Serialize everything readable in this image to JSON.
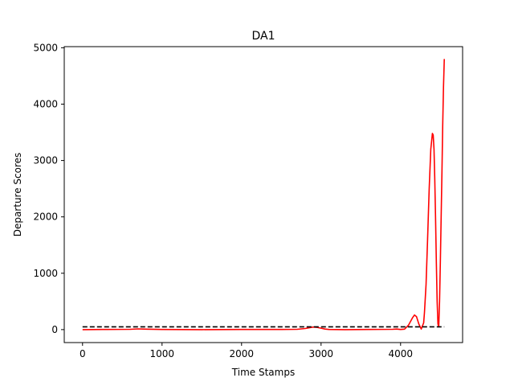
{
  "chart_data": {
    "type": "line",
    "title": "DA1",
    "xlabel": "Time Stamps",
    "ylabel": "Departure Scores",
    "xlim": [
      -230,
      4780
    ],
    "ylim": [
      -230,
      5020
    ],
    "xticks": [
      0,
      1000,
      2000,
      3000,
      4000
    ],
    "yticks": [
      0,
      1000,
      2000,
      3000,
      4000,
      5000
    ],
    "grid": false,
    "series": [
      {
        "style": "solid",
        "color": "#ff0000",
        "x": [
          0,
          300,
          600,
          700,
          800,
          1000,
          1500,
          2000,
          2500,
          2700,
          2800,
          2900,
          2950,
          3000,
          3050,
          3100,
          3300,
          3600,
          3900,
          3950,
          4000,
          4050,
          4100,
          4150,
          4175,
          4200,
          4230,
          4260,
          4290,
          4300,
          4320,
          4340,
          4360,
          4380,
          4400,
          4410,
          4420,
          4430,
          4440,
          4450,
          4460,
          4470,
          4480,
          4490,
          4500,
          4510,
          4520,
          4530,
          4540,
          4550
        ],
        "y": [
          0,
          2,
          5,
          12,
          8,
          3,
          0,
          3,
          2,
          5,
          20,
          45,
          40,
          25,
          10,
          3,
          0,
          2,
          5,
          10,
          3,
          8,
          80,
          210,
          260,
          230,
          100,
          10,
          120,
          300,
          800,
          1600,
          2500,
          3200,
          3480,
          3450,
          3200,
          2700,
          2000,
          1200,
          500,
          100,
          50,
          500,
          1200,
          2000,
          2800,
          3600,
          4300,
          4800
        ]
      },
      {
        "style": "dashed",
        "color": "#000000",
        "x": [
          0,
          4550
        ],
        "y": [
          50,
          50
        ]
      }
    ]
  }
}
